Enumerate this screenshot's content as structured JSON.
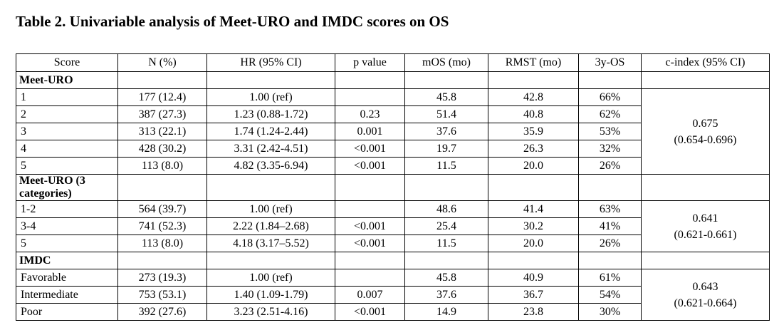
{
  "header": {
    "title": "Table 2. Univariable analysis of Meet-URO and IMDC scores on OS"
  },
  "table": {
    "columns": [
      "Score",
      "N (%)",
      "HR (95% CI)",
      "p value",
      "mOS (mo)",
      "RMST (mo)",
      "3y-OS",
      "c-index (95% CI)"
    ],
    "sections": [
      {
        "label": "Meet-URO",
        "rows": [
          [
            "1",
            "177 (12.4)",
            "1.00 (ref)",
            "",
            "45.8",
            "42.8",
            "66%"
          ],
          [
            "2",
            "387 (27.3)",
            "1.23 (0.88-1.72)",
            "0.23",
            "51.4",
            "40.8",
            "62%"
          ],
          [
            "3",
            "313 (22.1)",
            "1.74 (1.24-2.44)",
            "0.001",
            "37.6",
            "35.9",
            "53%"
          ],
          [
            "4",
            "428 (30.2)",
            "3.31 (2.42-4.51)",
            "<0.001",
            "19.7",
            "26.3",
            "32%"
          ],
          [
            "5",
            "113 (8.0)",
            "4.82 (3.35-6.94)",
            "<0.001",
            "11.5",
            "20.0",
            "26%"
          ]
        ],
        "cindex": [
          "0.675",
          "(0.654-0.696)"
        ]
      },
      {
        "label": "Meet-URO (3 categories)",
        "rows": [
          [
            "1-2",
            "564 (39.7)",
            "1.00 (ref)",
            "",
            "48.6",
            "41.4",
            "63%"
          ],
          [
            "3-4",
            "741 (52.3)",
            "2.22 (1.84–2.68)",
            "<0.001",
            "25.4",
            "30.2",
            "41%"
          ],
          [
            "5",
            "113 (8.0)",
            "4.18 (3.17–5.52)",
            "<0.001",
            "11.5",
            "20.0",
            "26%"
          ]
        ],
        "cindex": [
          "0.641",
          "(0.621-0.661)"
        ]
      },
      {
        "label": "IMDC",
        "rows": [
          [
            "Favorable",
            "273 (19.3)",
            "1.00 (ref)",
            "",
            "45.8",
            "40.9",
            "61%"
          ],
          [
            "Intermediate",
            "753 (53.1)",
            "1.40 (1.09-1.79)",
            "0.007",
            "37.6",
            "36.7",
            "54%"
          ],
          [
            "Poor",
            "392 (27.6)",
            "3.23 (2.51-4.16)",
            "<0.001",
            "14.9",
            "23.8",
            "30%"
          ]
        ],
        "cindex": [
          "0.643",
          "(0.621-0.664)"
        ]
      }
    ]
  }
}
